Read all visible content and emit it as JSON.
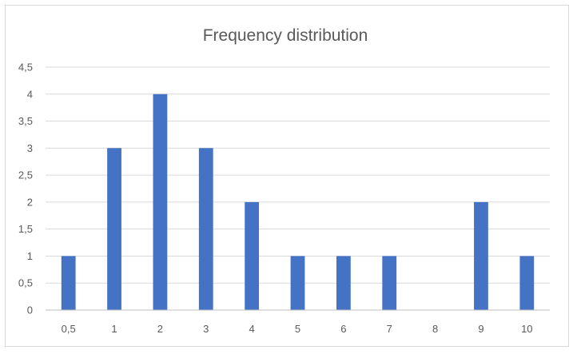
{
  "chart_data": {
    "type": "bar",
    "title": "Frequency distribution",
    "xlabel": "",
    "ylabel": "",
    "categories": [
      "0,5",
      "1",
      "2",
      "3",
      "4",
      "5",
      "6",
      "7",
      "8",
      "9",
      "10"
    ],
    "values": [
      1,
      3,
      4,
      3,
      2,
      1,
      1,
      1,
      0,
      2,
      1
    ],
    "ylim": [
      0,
      4.5
    ],
    "y_ticks": [
      "0",
      "0,5",
      "1",
      "1,5",
      "2",
      "2,5",
      "3",
      "3,5",
      "4",
      "4,5"
    ],
    "grid": true,
    "legend": "none",
    "colors": {
      "bar": "#4472c4"
    }
  }
}
